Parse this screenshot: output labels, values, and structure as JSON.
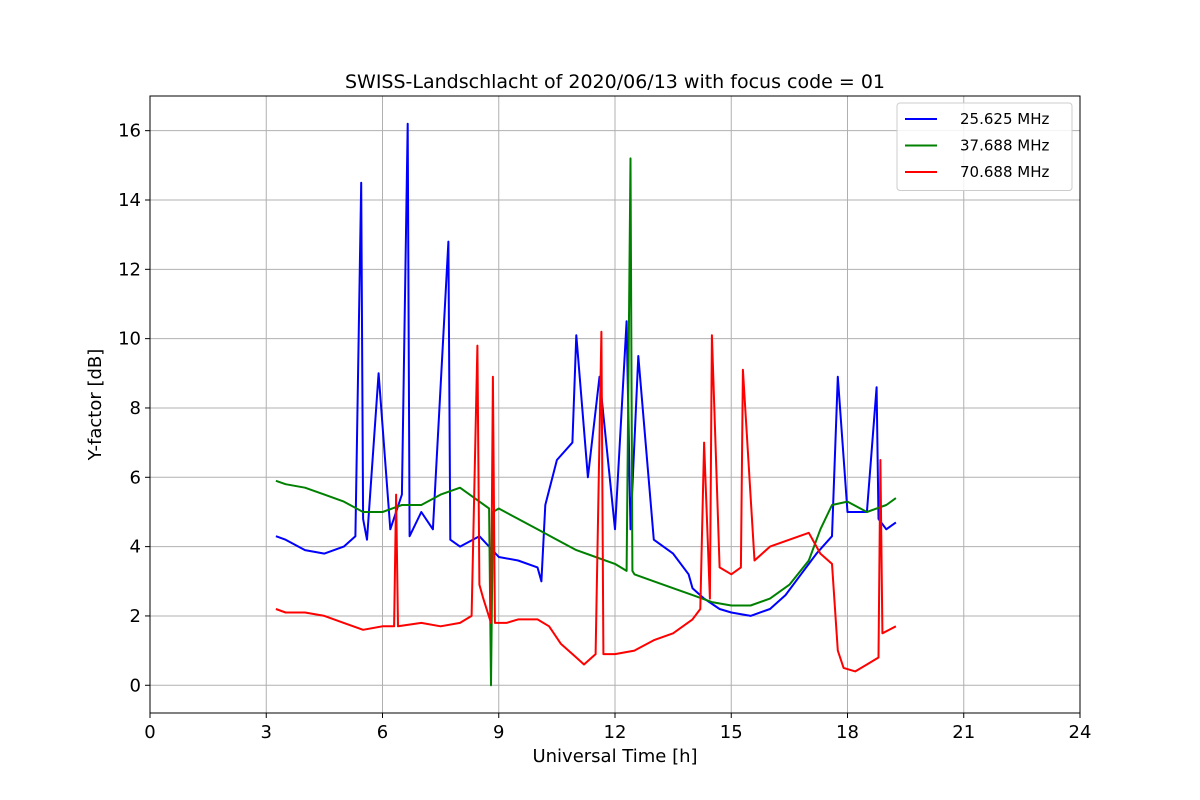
{
  "chart_data": {
    "type": "line",
    "title": "SWISS-Landschlacht of 2020/06/13 with focus code = 01",
    "xlabel": "Universal Time [h]",
    "ylabel": "Y-factor [dB]",
    "xlim": [
      0,
      24
    ],
    "ylim": [
      -0.8,
      17
    ],
    "xticks": [
      0,
      3,
      6,
      9,
      12,
      15,
      18,
      21,
      24
    ],
    "yticks": [
      0,
      2,
      4,
      6,
      8,
      10,
      12,
      14,
      16
    ],
    "grid": true,
    "legend_position": "top-right",
    "series": [
      {
        "name": "25.625 MHz",
        "color": "#0000ff",
        "x": [
          3.25,
          3.5,
          4.0,
          4.5,
          5.0,
          5.3,
          5.45,
          5.5,
          5.6,
          5.9,
          6.2,
          6.5,
          6.65,
          6.7,
          7.0,
          7.3,
          7.7,
          7.75,
          8.0,
          8.5,
          9.0,
          9.5,
          10.0,
          10.1,
          10.2,
          10.5,
          10.9,
          11.0,
          11.3,
          11.6,
          12.0,
          12.3,
          12.4,
          12.6,
          13.0,
          13.5,
          13.9,
          14.0,
          14.3,
          14.7,
          15.0,
          15.5,
          16.0,
          16.4,
          16.8,
          17.2,
          17.6,
          17.75,
          18.0,
          18.5,
          18.75,
          18.8,
          19.0,
          19.25
        ],
        "y": [
          4.3,
          4.2,
          3.9,
          3.8,
          4.0,
          4.3,
          14.5,
          4.8,
          4.2,
          9.0,
          4.5,
          5.5,
          16.2,
          4.3,
          5.0,
          4.5,
          12.8,
          4.2,
          4.0,
          4.3,
          3.7,
          3.6,
          3.4,
          3.0,
          5.2,
          6.5,
          7.0,
          10.1,
          6.0,
          8.9,
          4.5,
          10.5,
          4.5,
          9.5,
          4.2,
          3.8,
          3.2,
          2.8,
          2.5,
          2.2,
          2.1,
          2.0,
          2.2,
          2.6,
          3.2,
          3.8,
          4.3,
          8.9,
          5.0,
          5.0,
          8.6,
          4.8,
          4.5,
          4.7
        ]
      },
      {
        "name": "37.688 MHz",
        "color": "#008000",
        "x": [
          3.25,
          3.5,
          4.0,
          4.5,
          5.0,
          5.5,
          6.0,
          6.5,
          7.0,
          7.5,
          8.0,
          8.5,
          8.75,
          8.8,
          8.85,
          9.0,
          9.5,
          10.0,
          10.5,
          11.0,
          11.5,
          12.0,
          12.3,
          12.4,
          12.45,
          12.5,
          13.0,
          13.5,
          14.0,
          14.5,
          15.0,
          15.5,
          16.0,
          16.5,
          17.0,
          17.3,
          17.6,
          18.0,
          18.5,
          19.0,
          19.25
        ],
        "y": [
          5.9,
          5.8,
          5.7,
          5.5,
          5.3,
          5.0,
          5.0,
          5.2,
          5.2,
          5.5,
          5.7,
          5.3,
          5.1,
          0.0,
          5.0,
          5.1,
          4.8,
          4.5,
          4.2,
          3.9,
          3.7,
          3.5,
          3.3,
          15.2,
          3.3,
          3.2,
          3.0,
          2.8,
          2.6,
          2.4,
          2.3,
          2.3,
          2.5,
          2.9,
          3.6,
          4.5,
          5.2,
          5.3,
          5.0,
          5.2,
          5.4
        ]
      },
      {
        "name": "70.688 MHz",
        "color": "#ff0000",
        "x": [
          3.25,
          3.5,
          4.0,
          4.5,
          5.0,
          5.5,
          6.0,
          6.3,
          6.35,
          6.4,
          7.0,
          7.5,
          8.0,
          8.3,
          8.45,
          8.5,
          8.6,
          8.8,
          8.85,
          8.9,
          9.2,
          9.5,
          10.0,
          10.3,
          10.6,
          11.0,
          11.2,
          11.5,
          11.65,
          11.7,
          12.0,
          12.5,
          13.0,
          13.5,
          14.0,
          14.2,
          14.3,
          14.45,
          14.5,
          14.7,
          15.0,
          15.25,
          15.3,
          15.6,
          16.0,
          16.5,
          17.0,
          17.3,
          17.6,
          17.75,
          17.9,
          18.2,
          18.5,
          18.8,
          18.85,
          18.9,
          19.25
        ],
        "y": [
          2.2,
          2.1,
          2.1,
          2.0,
          1.8,
          1.6,
          1.7,
          1.7,
          5.5,
          1.7,
          1.8,
          1.7,
          1.8,
          2.0,
          9.8,
          2.9,
          2.5,
          1.8,
          8.9,
          1.8,
          1.8,
          1.9,
          1.9,
          1.7,
          1.2,
          0.8,
          0.6,
          0.9,
          10.2,
          0.9,
          0.9,
          1.0,
          1.3,
          1.5,
          1.9,
          2.2,
          7.0,
          2.5,
          10.1,
          3.4,
          3.2,
          3.4,
          9.1,
          3.6,
          4.0,
          4.2,
          4.4,
          3.8,
          3.5,
          1.0,
          0.5,
          0.4,
          0.6,
          0.8,
          6.5,
          1.5,
          1.7
        ]
      }
    ]
  }
}
